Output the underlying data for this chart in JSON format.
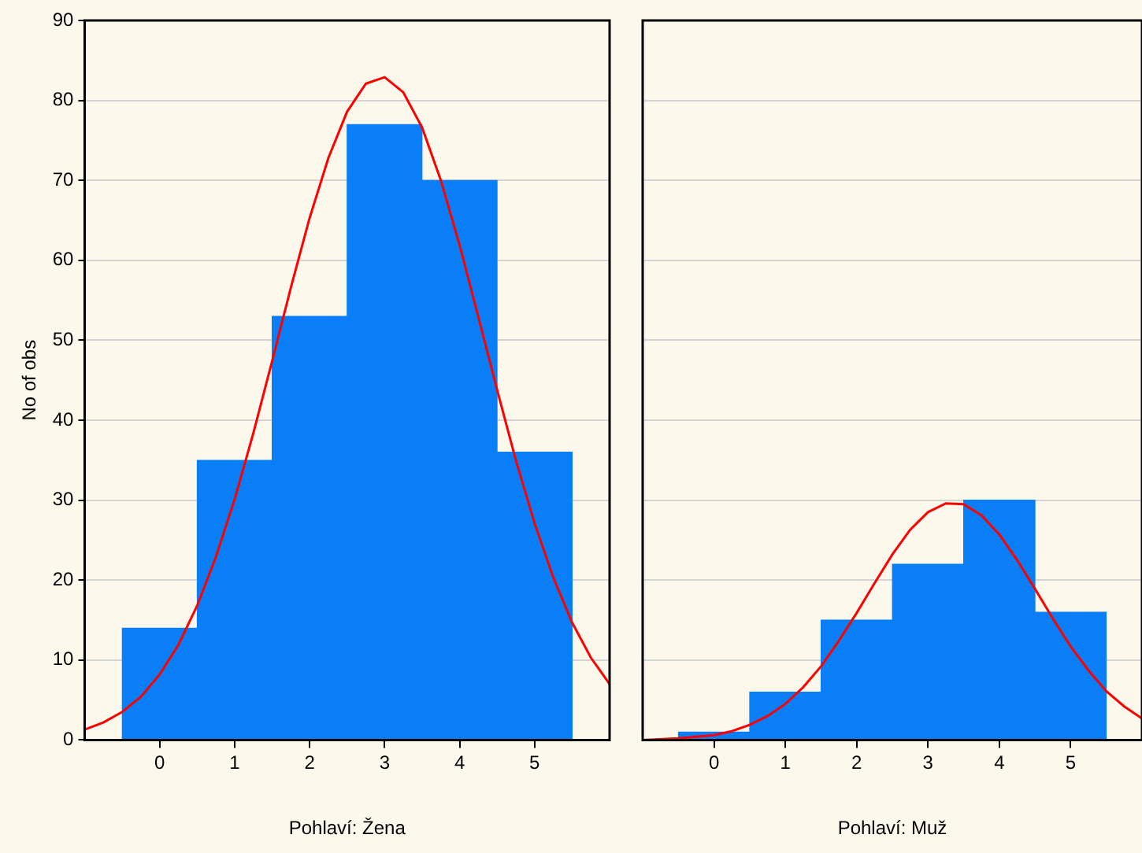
{
  "chart_data": [
    {
      "type": "bar",
      "xlabel": "Pohlaví: Žena",
      "ylabel": "No of obs",
      "xlim": [
        -1,
        6
      ],
      "xticks": [
        0,
        1,
        2,
        3,
        4,
        5
      ],
      "ylim": [
        0,
        90
      ],
      "yticks": [
        0,
        10,
        20,
        30,
        40,
        50,
        60,
        70,
        80,
        90
      ],
      "grid": "y",
      "legend": false,
      "series": [
        {
          "type": "bar",
          "color": "#0a7ef6",
          "x": [
            0,
            1,
            2,
            3,
            4,
            5
          ],
          "values": [
            14,
            35,
            53,
            77,
            70,
            36
          ]
        },
        {
          "type": "line",
          "color": "#ff0000",
          "x": [
            -1,
            -0.75,
            -0.5,
            -0.25,
            0,
            0.25,
            0.5,
            0.75,
            1,
            1.25,
            1.5,
            1.75,
            2,
            2.25,
            2.5,
            2.75,
            3,
            3.25,
            3.5,
            3.75,
            4,
            4.25,
            4.5,
            4.75,
            5,
            5.25,
            5.5,
            5.75,
            6
          ],
          "values": [
            1.3,
            2.2,
            3.5,
            5.4,
            8.2,
            11.9,
            16.8,
            22.9,
            30.1,
            38.4,
            47.4,
            56.6,
            65.3,
            72.8,
            78.6,
            82.1,
            82.9,
            81.0,
            76.6,
            70.0,
            61.9,
            52.9,
            43.8,
            35.0,
            27.1,
            20.3,
            14.7,
            10.3,
            7.0
          ]
        }
      ]
    },
    {
      "type": "bar",
      "xlabel": "Pohlaví: Muž",
      "xlim": [
        -1,
        6
      ],
      "xticks": [
        0,
        1,
        2,
        3,
        4,
        5
      ],
      "ylim": [
        0,
        90
      ],
      "yticks": [
        0,
        10,
        20,
        30,
        40,
        50,
        60,
        70,
        80,
        90
      ],
      "grid": "y",
      "legend": false,
      "tick_labels": "x",
      "series": [
        {
          "type": "bar",
          "color": "#0a7ef6",
          "x": [
            0,
            1,
            2,
            3,
            4,
            5
          ],
          "values": [
            1,
            6,
            15,
            22,
            30,
            16
          ]
        },
        {
          "type": "line",
          "color": "#ff0000",
          "x": [
            -1,
            -0.5,
            0,
            0.25,
            0.5,
            0.75,
            1,
            1.25,
            1.5,
            1.75,
            2,
            2.25,
            2.5,
            2.75,
            3,
            3.25,
            3.5,
            3.75,
            4,
            4.25,
            4.5,
            4.75,
            5,
            5.25,
            5.5,
            5.75,
            6
          ],
          "values": [
            0.0,
            0.2,
            0.6,
            1.1,
            1.9,
            3.0,
            4.5,
            6.6,
            9.2,
            12.4,
            15.9,
            19.6,
            23.2,
            26.3,
            28.5,
            29.6,
            29.5,
            28.1,
            25.7,
            22.5,
            18.9,
            15.2,
            11.7,
            8.7,
            6.1,
            4.2,
            2.7
          ]
        }
      ]
    }
  ]
}
